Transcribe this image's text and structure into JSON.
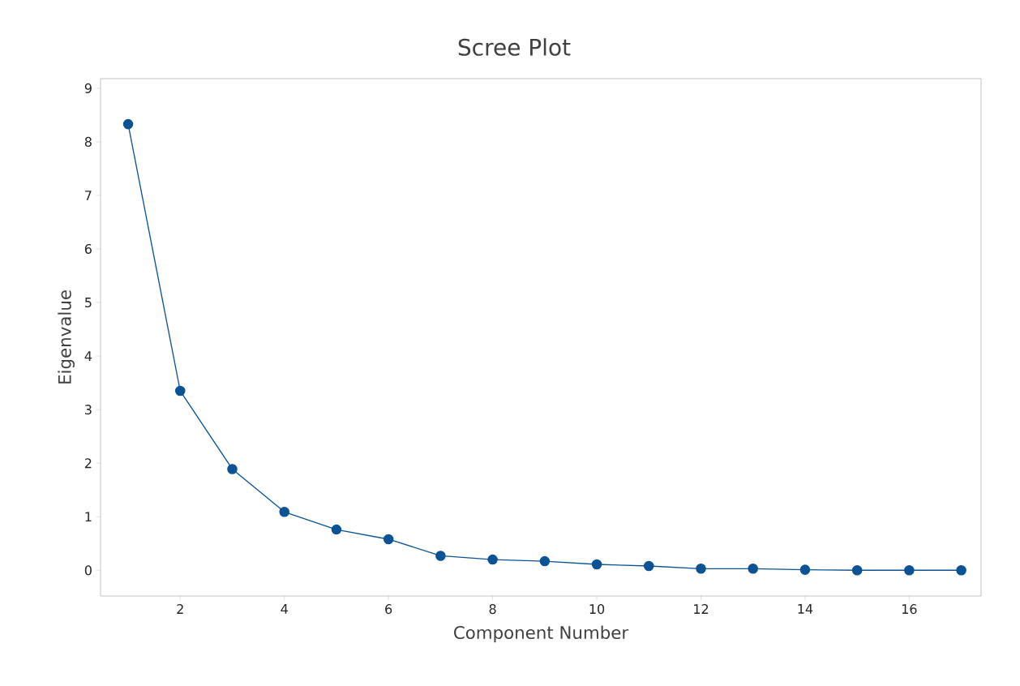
{
  "chart_data": {
    "type": "line",
    "title": "Scree Plot",
    "xlabel": "Component Number",
    "ylabel": "Eigenvalue",
    "x": [
      1,
      2,
      3,
      4,
      5,
      6,
      7,
      8,
      9,
      10,
      11,
      12,
      13,
      14,
      15,
      16,
      17
    ],
    "series": [
      {
        "color": "#0b5394",
        "values": [
          8.33,
          3.35,
          1.89,
          1.09,
          0.76,
          0.58,
          0.27,
          0.2,
          0.17,
          0.11,
          0.08,
          0.03,
          0.03,
          0.01,
          0,
          0,
          0
        ]
      }
    ],
    "xlim": [
      0.47,
      17.38
    ],
    "ylim": [
      -0.48,
      9.18
    ],
    "xticks": [
      2,
      4,
      6,
      8,
      10,
      12,
      14,
      16
    ],
    "yticks": [
      0,
      1,
      2,
      3,
      4,
      5,
      6,
      7,
      8,
      9
    ],
    "marker": "circle",
    "line_style": "solid"
  }
}
